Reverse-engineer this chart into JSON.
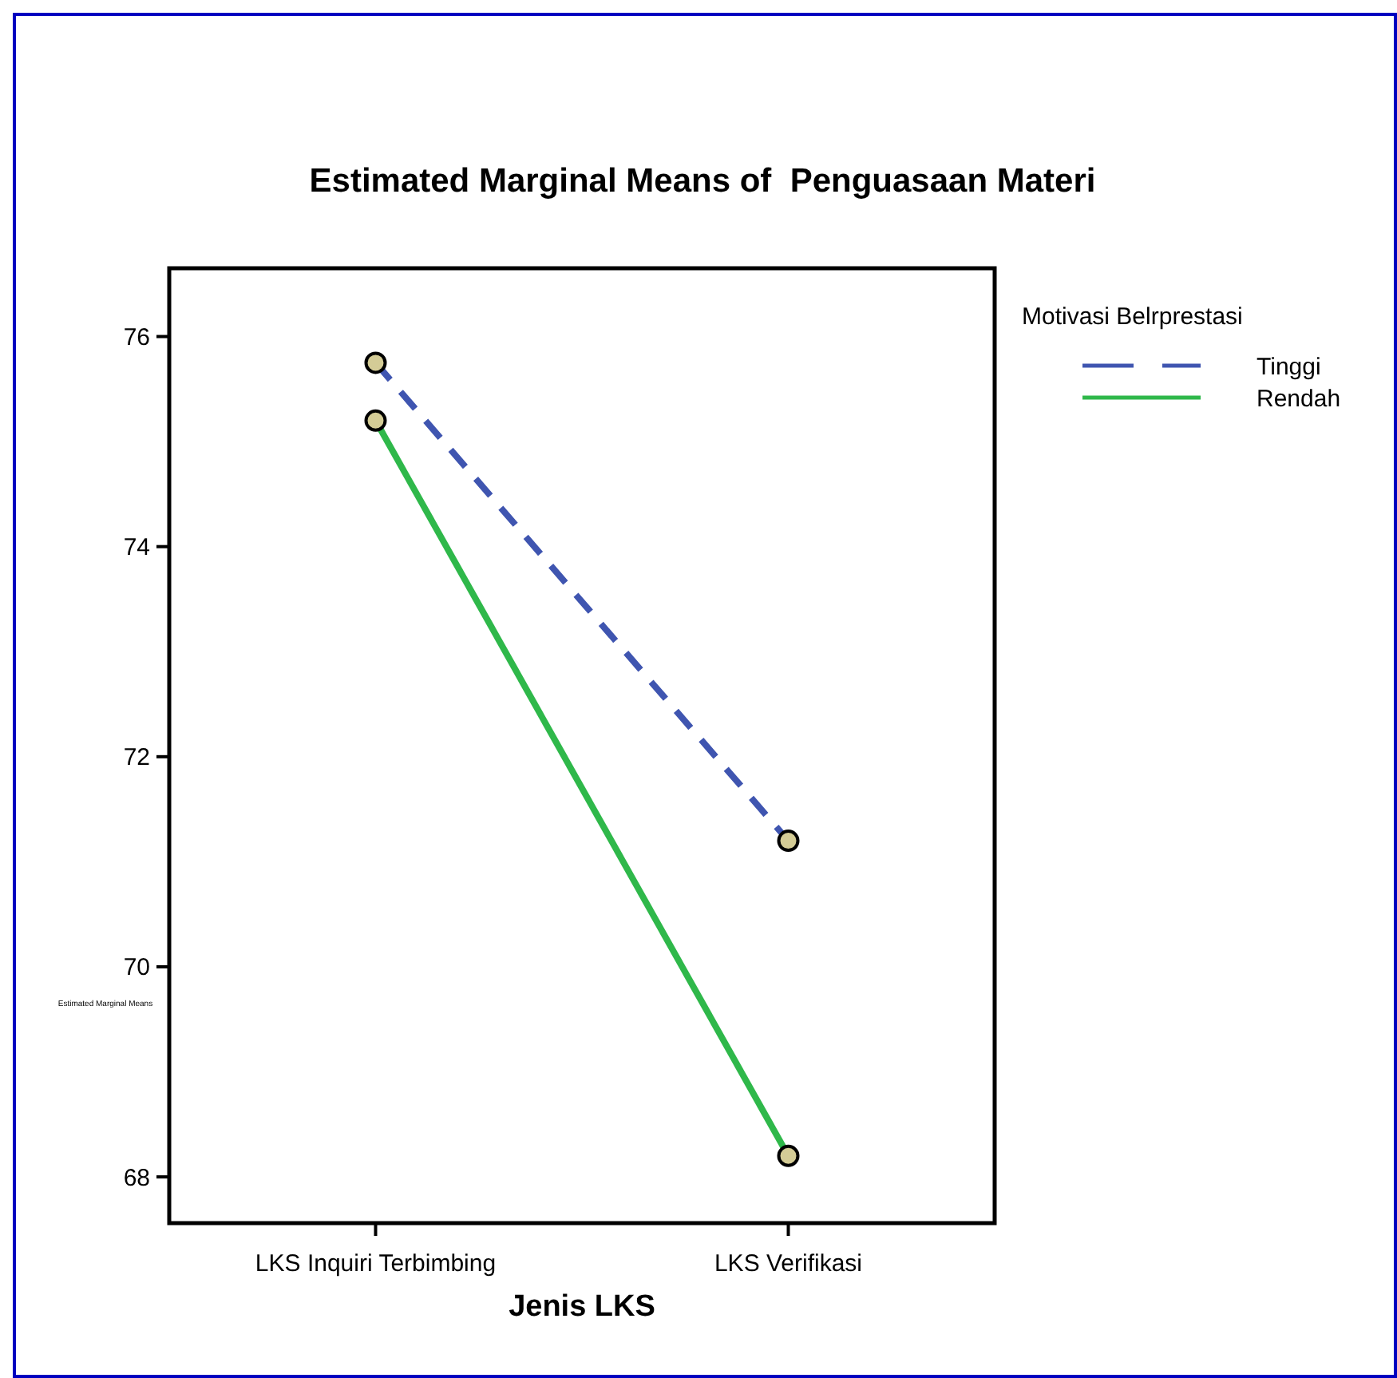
{
  "chart_data": {
    "type": "line",
    "title": "Estimated Marginal Means of  Penguasaan Materi",
    "xlabel": "Jenis LKS",
    "ylabel": "Estimated Marginal Means",
    "legend_title": "Motivasi Belrprestasi",
    "categories": [
      "LKS Inquiri Terbimbing",
      "LKS Verifikasi"
    ],
    "ylim": [
      67.56,
      76.65
    ],
    "yticks": [
      68,
      70,
      72,
      74,
      76
    ],
    "marker": "circle",
    "legend": "top right",
    "series": [
      {
        "name": "Tinggi",
        "color": "#3f55b0",
        "line_style": "dashed",
        "values": [
          75.75,
          71.2
        ]
      },
      {
        "name": "Rendah",
        "color": "#2fb84a",
        "line_style": "solid",
        "values": [
          75.2,
          68.2
        ]
      }
    ]
  }
}
